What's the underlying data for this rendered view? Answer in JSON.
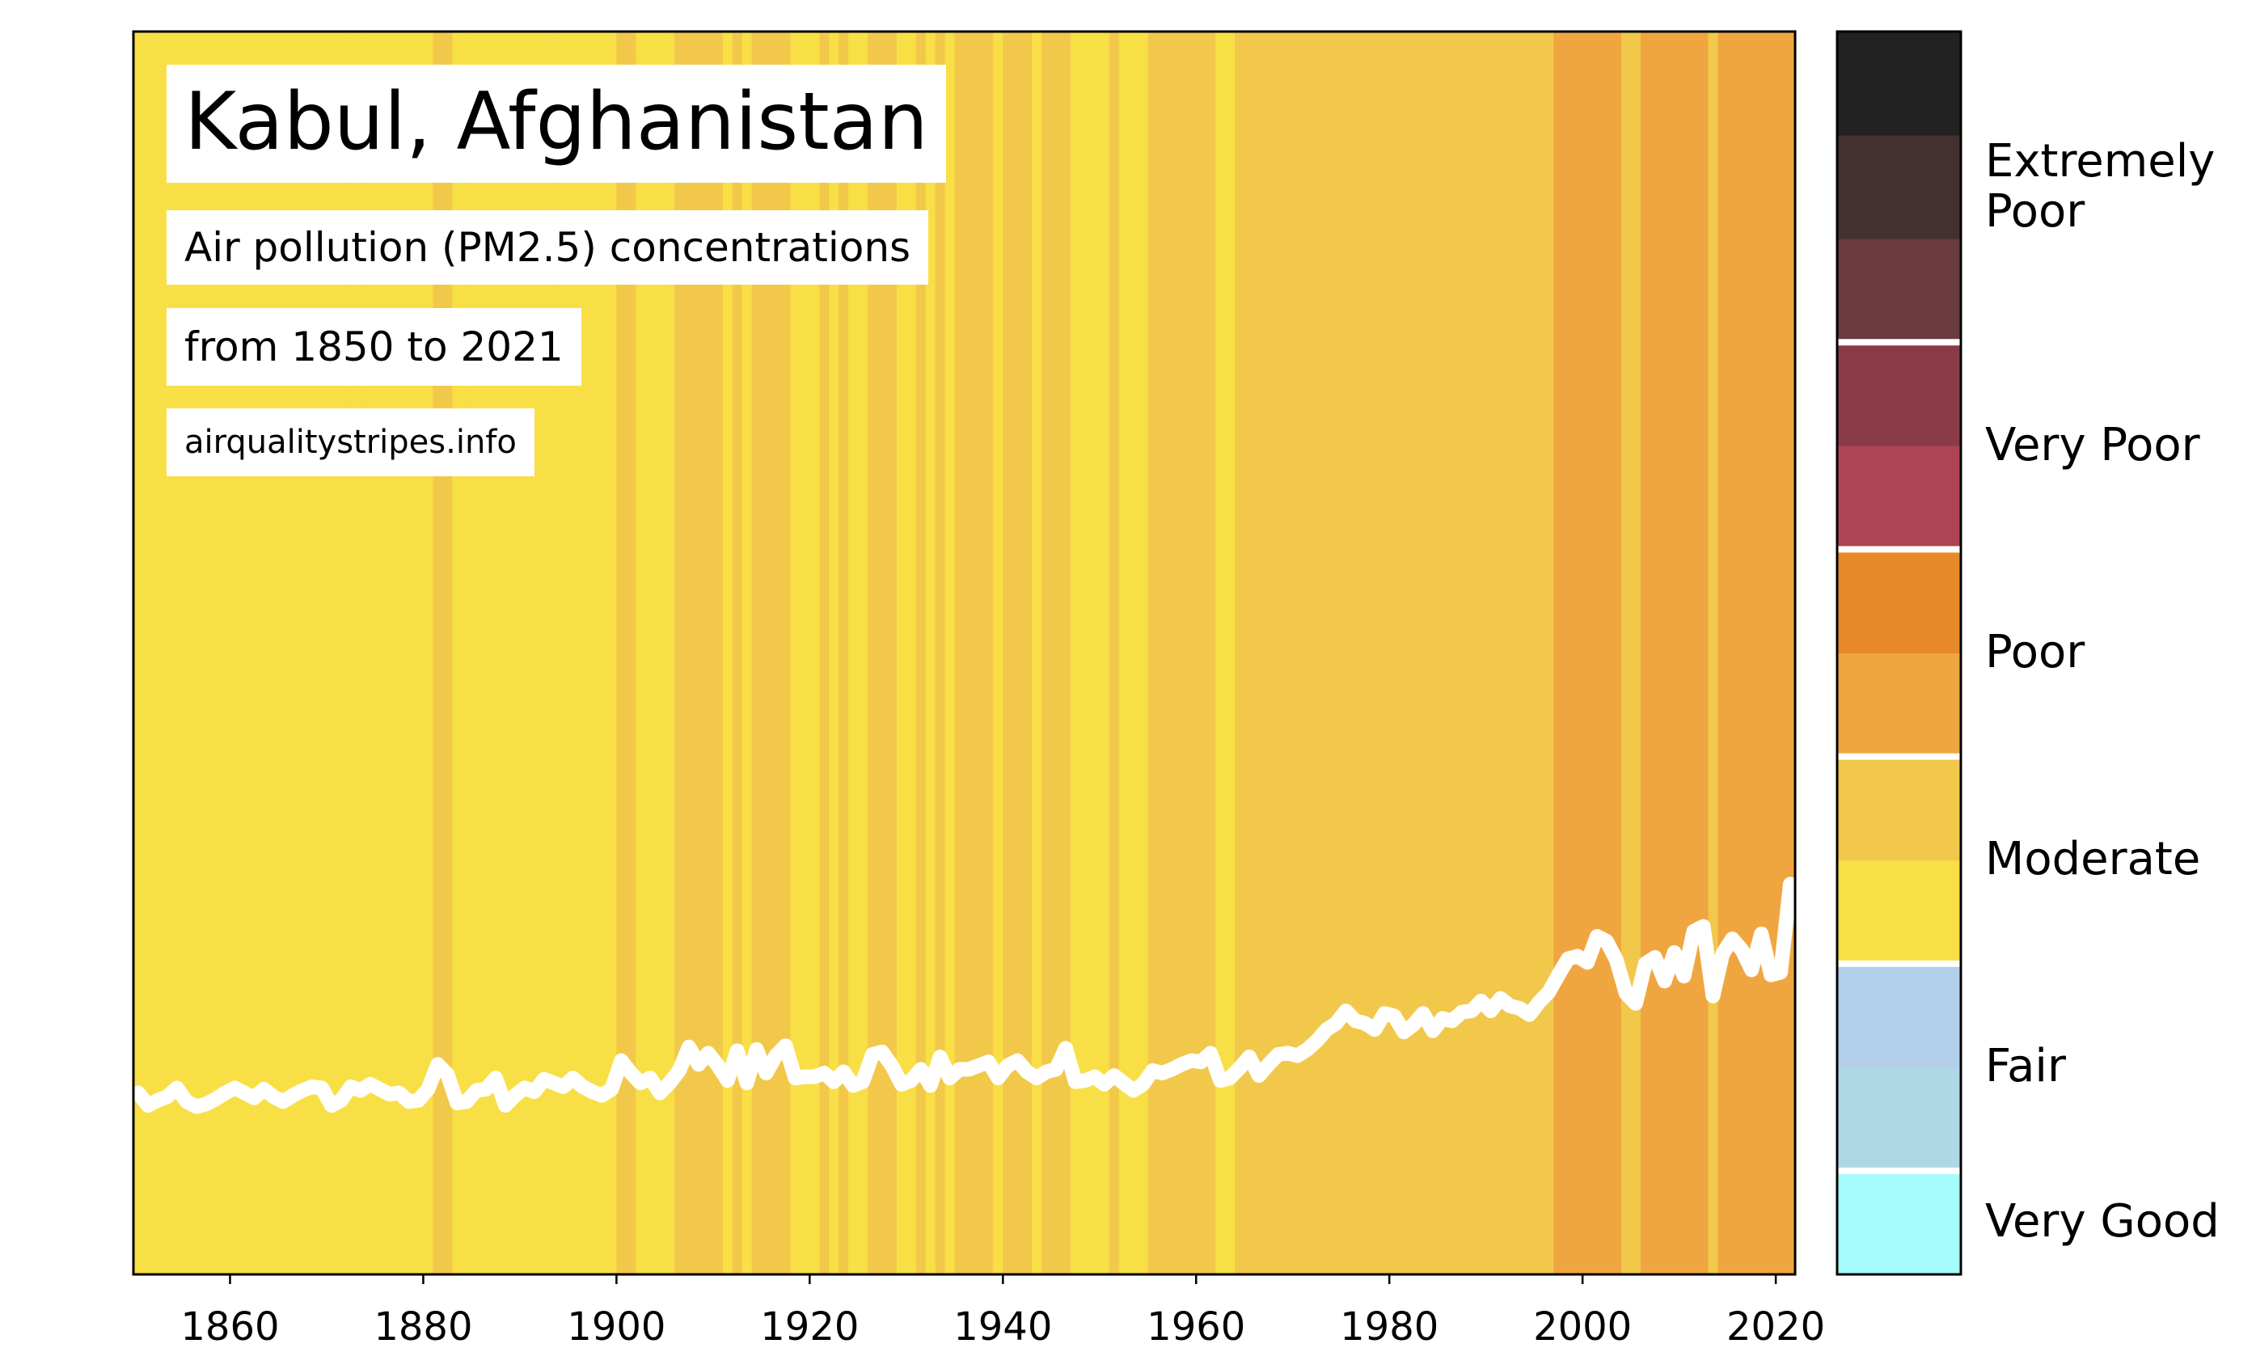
{
  "chart_data": {
    "type": "stripes",
    "title": "Kabul, Afghanistan",
    "subtitle": "Air pollution (PM2.5) concentrations",
    "period": "from 1850 to 2021",
    "source": "airqualitystripes.info",
    "x": [
      1850,
      1851,
      1852,
      1853,
      1854,
      1855,
      1856,
      1857,
      1858,
      1859,
      1860,
      1861,
      1862,
      1863,
      1864,
      1865,
      1866,
      1867,
      1868,
      1869,
      1870,
      1871,
      1872,
      1873,
      1874,
      1875,
      1876,
      1877,
      1878,
      1879,
      1880,
      1881,
      1882,
      1883,
      1884,
      1885,
      1886,
      1887,
      1888,
      1889,
      1890,
      1891,
      1892,
      1893,
      1894,
      1895,
      1896,
      1897,
      1898,
      1899,
      1900,
      1901,
      1902,
      1903,
      1904,
      1905,
      1906,
      1907,
      1908,
      1909,
      1910,
      1911,
      1912,
      1913,
      1914,
      1915,
      1916,
      1917,
      1918,
      1919,
      1920,
      1921,
      1922,
      1923,
      1924,
      1925,
      1926,
      1927,
      1928,
      1929,
      1930,
      1931,
      1932,
      1933,
      1934,
      1935,
      1936,
      1937,
      1938,
      1939,
      1940,
      1941,
      1942,
      1943,
      1944,
      1945,
      1946,
      1947,
      1948,
      1949,
      1950,
      1951,
      1952,
      1953,
      1954,
      1955,
      1956,
      1957,
      1958,
      1959,
      1960,
      1961,
      1962,
      1963,
      1964,
      1965,
      1966,
      1967,
      1968,
      1969,
      1970,
      1971,
      1972,
      1973,
      1974,
      1975,
      1976,
      1977,
      1978,
      1979,
      1980,
      1981,
      1982,
      1983,
      1984,
      1985,
      1986,
      1987,
      1988,
      1989,
      1990,
      1991,
      1992,
      1993,
      1994,
      1995,
      1996,
      1997,
      1998,
      1999,
      2000,
      2001,
      2002,
      2003,
      2004,
      2005,
      2006,
      2007,
      2008,
      2009,
      2010,
      2011,
      2012,
      2013,
      2014,
      2015,
      2016,
      2017,
      2018,
      2019,
      2020,
      2021
    ],
    "values": [
      14.6,
      13.6,
      14.0,
      14.3,
      15.0,
      13.9,
      13.5,
      13.7,
      14.1,
      14.6,
      15.0,
      14.6,
      14.2,
      14.9,
      14.3,
      13.9,
      14.4,
      14.8,
      15.1,
      15.0,
      13.6,
      14.0,
      15.1,
      14.8,
      15.3,
      14.9,
      14.5,
      14.6,
      13.9,
      14.0,
      14.9,
      16.9,
      16.1,
      13.8,
      13.9,
      14.8,
      14.9,
      15.8,
      13.6,
      14.4,
      15.0,
      14.7,
      15.7,
      15.4,
      15.1,
      15.8,
      15.1,
      14.7,
      14.4,
      14.9,
      17.2,
      16.2,
      15.4,
      15.8,
      14.6,
      15.4,
      16.4,
      18.3,
      16.9,
      17.8,
      16.8,
      15.6,
      18.0,
      15.4,
      18.1,
      16.2,
      17.6,
      18.4,
      15.8,
      15.9,
      15.9,
      16.2,
      15.5,
      16.3,
      15.2,
      15.5,
      17.7,
      17.9,
      16.8,
      15.3,
      15.6,
      16.5,
      15.2,
      17.5,
      15.8,
      16.5,
      16.5,
      16.8,
      17.1,
      15.8,
      16.8,
      17.2,
      16.3,
      15.8,
      16.3,
      16.5,
      18.2,
      15.5,
      15.6,
      15.9,
      15.3,
      16.0,
      15.4,
      14.8,
      15.3,
      16.4,
      16.2,
      16.5,
      16.9,
      17.2,
      17.1,
      17.8,
      15.6,
      15.8,
      16.6,
      17.5,
      16.0,
      16.9,
      17.7,
      17.8,
      17.6,
      18.1,
      18.8,
      19.7,
      20.2,
      21.2,
      20.4,
      20.2,
      19.7,
      21.0,
      20.8,
      19.5,
      20.1,
      21.0,
      19.6,
      20.6,
      20.4,
      21.1,
      21.2,
      22.0,
      21.2,
      22.2,
      21.6,
      21.4,
      20.9,
      21.9,
      22.7,
      24.1,
      25.4,
      25.6,
      25.1,
      27.2,
      26.8,
      25.3,
      22.6,
      21.8,
      25.0,
      25.5,
      23.6,
      25.9,
      24.0,
      27.6,
      28.0,
      22.4,
      25.8,
      27.0,
      26.1,
      24.5,
      27.4,
      24.1,
      24.3,
      31.4
    ],
    "xlim": [
      1850,
      2022
    ],
    "ylim": [
      0,
      100
    ],
    "xticks": [
      1860,
      1880,
      1900,
      1920,
      1940,
      1960,
      1980,
      2000,
      2020
    ],
    "line_color": "#ffffff",
    "colorbar": {
      "colors": [
        "#a5fcfc",
        "#aed8e6",
        "#b3cfea",
        "#f8df46",
        "#f2c84b",
        "#f0a640",
        "#e88a2a",
        "#ae4554",
        "#8b3a48",
        "#6b3a3e",
        "#453030",
        "#222222"
      ],
      "bounds": [
        5,
        7.5,
        10,
        16,
        23,
        33,
        40,
        48,
        56,
        64,
        72
      ],
      "classes": [
        {
          "name": "Very Good",
          "bands": 1
        },
        {
          "name": "Fair",
          "bands": 2
        },
        {
          "name": "Moderate",
          "bands": 2
        },
        {
          "name": "Poor",
          "bands": 2
        },
        {
          "name": "Very Poor",
          "bands": 2
        },
        {
          "name": "Extremely Poor",
          "bands": 3
        }
      ]
    }
  }
}
